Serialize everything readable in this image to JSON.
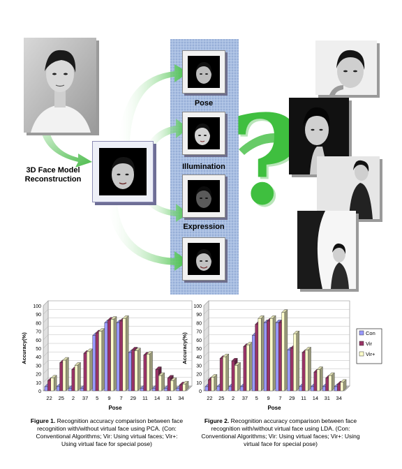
{
  "diagram": {
    "reconstruction_label": "3D Face Model\nReconstruction",
    "variations": [
      {
        "label": "Pose"
      },
      {
        "label": "Illumination"
      },
      {
        "label": "Expression"
      },
      {
        "label": ""
      }
    ],
    "question_mark": "?"
  },
  "figures": [
    {
      "caption_bold": "Figure 1.",
      "caption_text": " Recognition accuracy comparison between face recognition with/without virtual face using PCA. (Con: Conventional Algorithms; Vir: Using virtual faces; Vir+: Using virtual face for special pose)"
    },
    {
      "caption_bold": "Figure 2.",
      "caption_text": " Recognition accuracy comparison between face recognition with/without virtual face using LDA. (Con: Conventional Algorithms; Vir: Using virtual faces; Vir+: Using virtual face for special pose)"
    }
  ],
  "chart_data": [
    {
      "type": "bar",
      "categories": [
        "22",
        "25",
        "2",
        "37",
        "5",
        "9",
        "7",
        "29",
        "11",
        "14",
        "31",
        "34"
      ],
      "series": [
        {
          "name": "Con",
          "values": [
            5,
            5,
            3,
            3,
            65,
            80,
            80,
            45,
            3,
            3,
            3,
            3
          ]
        },
        {
          "name": "Vir",
          "values": [
            12,
            33,
            25,
            44,
            68,
            83,
            82,
            48,
            42,
            25,
            15,
            7
          ]
        },
        {
          "name": "Vir+",
          "values": [
            15,
            36,
            30,
            46,
            70,
            84,
            85,
            47,
            43,
            18,
            12,
            8
          ]
        }
      ],
      "xlabel": "Pose",
      "ylabel": "Accuracy(%)",
      "ylim": [
        0,
        100
      ],
      "yticks": [
        "0",
        "10",
        "20",
        "30",
        "40",
        "50",
        "60",
        "70",
        "80",
        "90",
        "100"
      ],
      "legend": "none",
      "colors": [
        "#9999ff",
        "#993366",
        "#ffffcc"
      ]
    },
    {
      "type": "bar",
      "categories": [
        "22",
        "25",
        "2",
        "37",
        "5",
        "9",
        "7",
        "29",
        "11",
        "14",
        "31",
        "34"
      ],
      "series": [
        {
          "name": "Con",
          "values": [
            5,
            5,
            5,
            5,
            65,
            80,
            80,
            48,
            5,
            5,
            5,
            5
          ]
        },
        {
          "name": "Vir",
          "values": [
            13,
            38,
            35,
            52,
            78,
            82,
            80,
            50,
            45,
            22,
            15,
            8
          ]
        },
        {
          "name": "Vir+",
          "values": [
            16,
            40,
            30,
            54,
            85,
            85,
            92,
            67,
            48,
            25,
            18,
            10
          ]
        }
      ],
      "xlabel": "Pose",
      "ylabel": "Accuracy(%)",
      "ylim": [
        0,
        100
      ],
      "yticks": [
        "0",
        "10",
        "20",
        "30",
        "40",
        "50",
        "60",
        "70",
        "80",
        "90",
        "100"
      ],
      "legend": "right",
      "colors": [
        "#9999ff",
        "#993366",
        "#ffffcc"
      ]
    }
  ]
}
